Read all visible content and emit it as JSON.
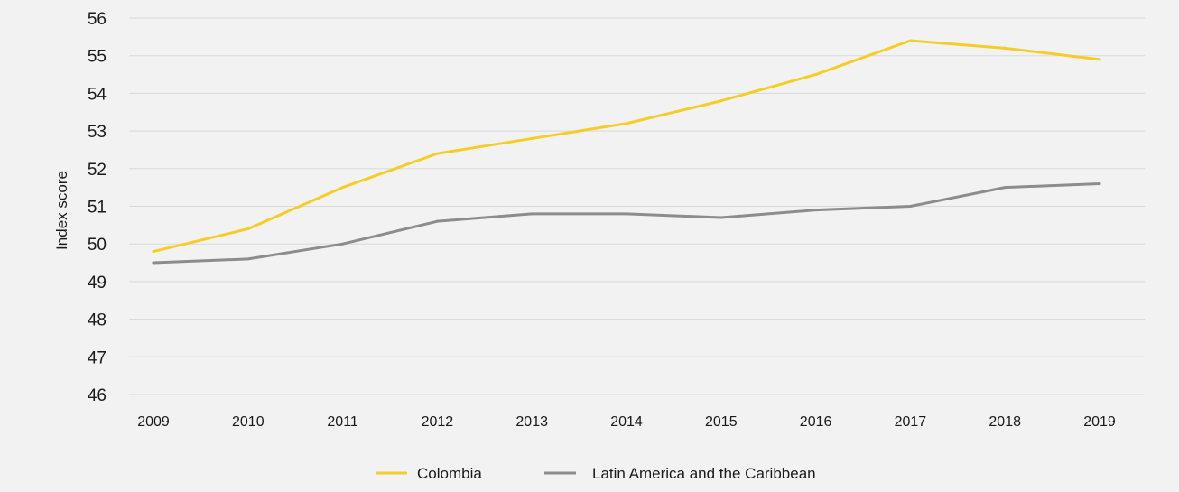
{
  "chart_data": {
    "type": "line",
    "title": "",
    "xlabel": "",
    "ylabel": "Index score",
    "ylim": [
      46,
      56
    ],
    "yticks": [
      46,
      47,
      48,
      49,
      50,
      51,
      52,
      53,
      54,
      55,
      56
    ],
    "x": [
      "2009",
      "2010",
      "2011",
      "2012",
      "2013",
      "2014",
      "2015",
      "2016",
      "2017",
      "2018",
      "2019"
    ],
    "grid": "horizontal",
    "legend_position": "bottom",
    "series": [
      {
        "name": "Colombia",
        "color": "#f5cd2a",
        "values": [
          49.8,
          50.4,
          51.5,
          52.4,
          52.8,
          53.2,
          53.8,
          54.5,
          55.4,
          55.2,
          54.9
        ]
      },
      {
        "name": "Latin America and the Caribbean",
        "color": "#8c8c8c",
        "values": [
          49.5,
          49.6,
          50.0,
          50.6,
          50.8,
          50.8,
          50.7,
          50.9,
          51.0,
          51.5,
          51.6
        ]
      }
    ]
  }
}
